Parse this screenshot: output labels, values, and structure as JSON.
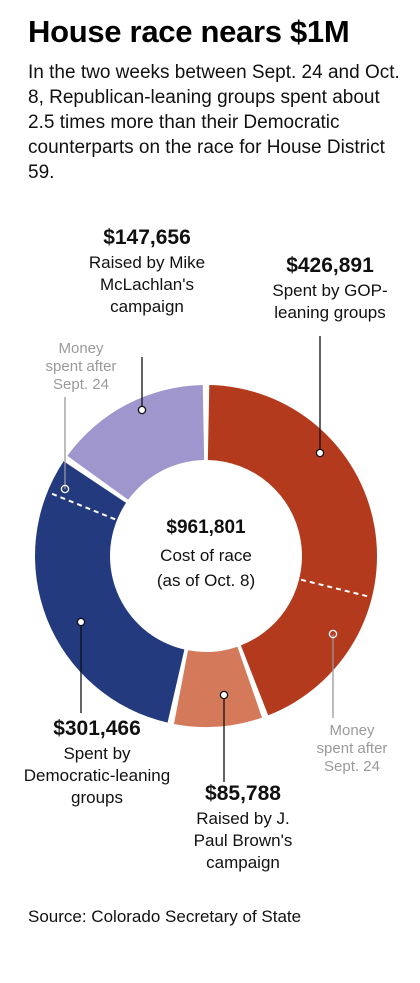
{
  "title": "House race nears $1M",
  "intro": "In the two weeks between Sept. 24 and Oct. 8, Republican-leaning groups spent about 2.5 times more than their Democratic counterparts on the race for House District 59.",
  "center": {
    "amount": "$961,801",
    "line1": "Cost of race",
    "line2": "(as of Oct. 8)"
  },
  "notes": {
    "left": "Money spent after Sept. 24",
    "right": "Money spent after Sept. 24"
  },
  "labels": {
    "mclachlan": {
      "amount": "$147,656",
      "text": "Raised by Mike McLachlan's campaign"
    },
    "gop": {
      "amount": "$426,891",
      "text": "Spent by GOP-leaning groups"
    },
    "dem": {
      "amount": "$301,466",
      "text": "Spent by Democratic-leaning groups"
    },
    "brown": {
      "amount": "$85,788",
      "text": "Raised by J. Paul Brown's campaign"
    }
  },
  "source": "Source: Colorado Secretary of State",
  "chart_data": {
    "type": "pie",
    "total": 961801,
    "slices": [
      {
        "label": "Spent by GOP-leaning groups",
        "value": 426891,
        "color": "#b33a1d"
      },
      {
        "label": "Raised by J. Paul Brown's campaign",
        "value": 85788,
        "color": "#d4795a"
      },
      {
        "label": "Spent by Democratic-leaning groups",
        "value": 301466,
        "color": "#233a7e"
      },
      {
        "label": "Raised by Mike McLachlan's campaign",
        "value": 147656,
        "color": "#9e96cc"
      }
    ]
  }
}
